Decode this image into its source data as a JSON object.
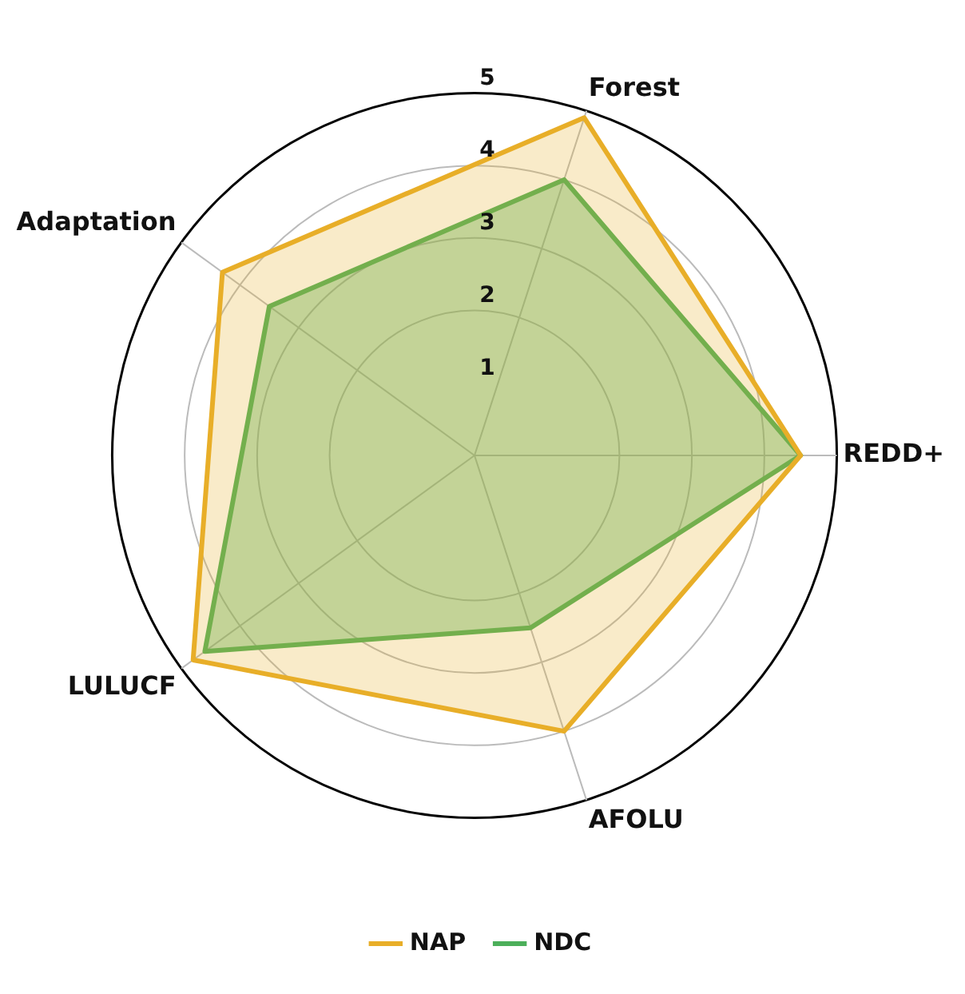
{
  "chart_data": {
    "type": "radar",
    "categories": [
      "Forest",
      "REDD+",
      "AFOLU",
      "LULUCF",
      "Adaptation"
    ],
    "series": [
      {
        "name": "NAP",
        "color": "#e8ae28",
        "values": [
          4.9,
          4.5,
          4.0,
          4.8,
          4.3
        ]
      },
      {
        "name": "NDC",
        "color": "#4caf5a",
        "values": [
          4.0,
          4.5,
          2.5,
          4.6,
          3.5
        ]
      }
    ],
    "ylim": [
      0,
      5
    ],
    "yticks": [
      1,
      2,
      3,
      4,
      5
    ],
    "grid": true,
    "legend": "bottom",
    "marker": "none"
  }
}
